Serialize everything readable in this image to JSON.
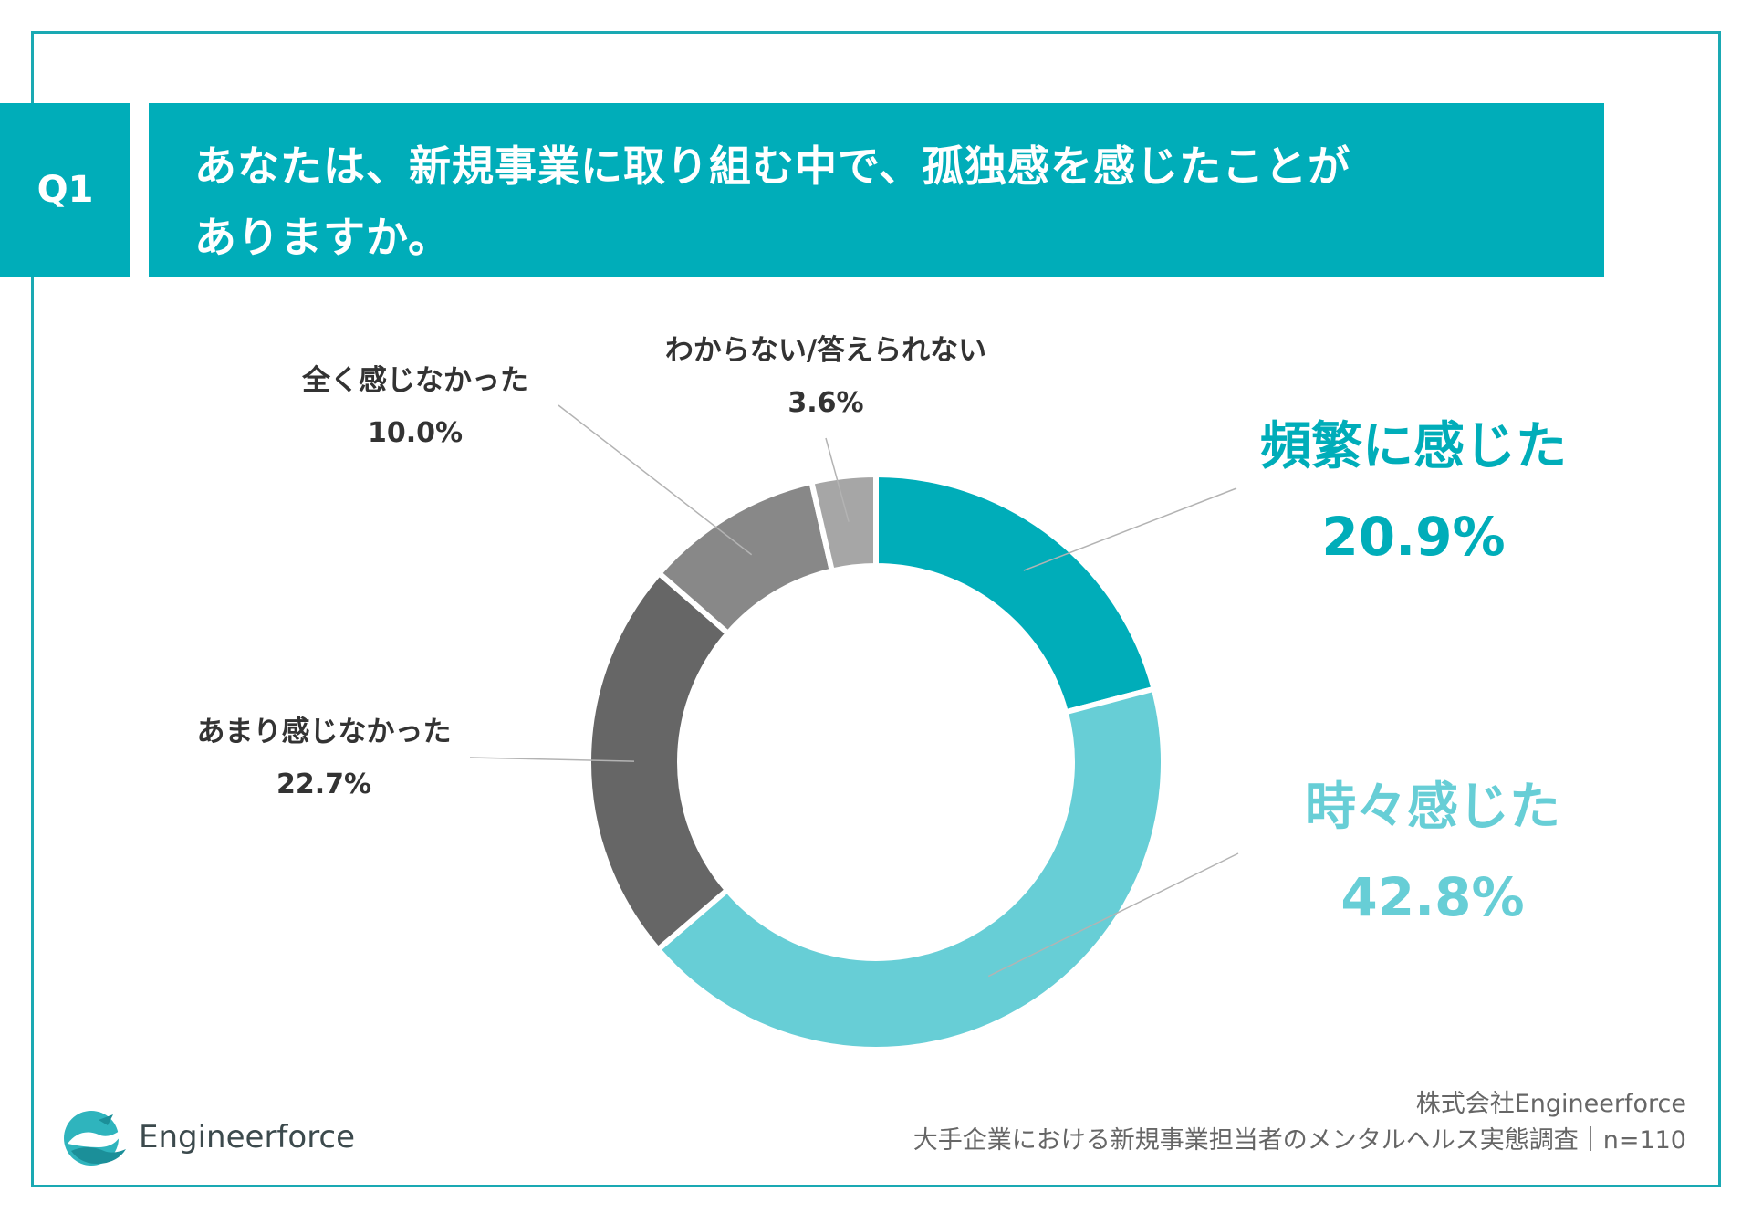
{
  "question": {
    "badge": "Q1",
    "line1": "あなたは、新規事業に取り組む中で、孤独感を感じたことが",
    "line2": "ありますか。"
  },
  "chart_data": {
    "type": "pie",
    "donut": true,
    "categories": [
      "頻繁に感じた",
      "時々感じた",
      "あまり感じなかった",
      "全く感じなかった",
      "わからない/答えられない"
    ],
    "values": [
      20.9,
      42.8,
      22.7,
      10.0,
      3.6
    ],
    "labels": [
      "20.9%",
      "42.8%",
      "22.7%",
      "10.0%",
      "3.6%"
    ],
    "colors": [
      "#00adb9",
      "#67ced6",
      "#666666",
      "#888888",
      "#a6a6a6"
    ],
    "title": ""
  },
  "colors": {
    "accent": "#00adb9",
    "accent_light": "#67ced6",
    "frame": "#1aa9b3"
  },
  "logo": {
    "text": "Engineerforce",
    "icon": "wave-bird-logo-icon"
  },
  "source": {
    "line1": "株式会社Engineerforce",
    "line2": "大手企業における新規事業担当者のメンタルヘルス実態調査｜n=110"
  }
}
